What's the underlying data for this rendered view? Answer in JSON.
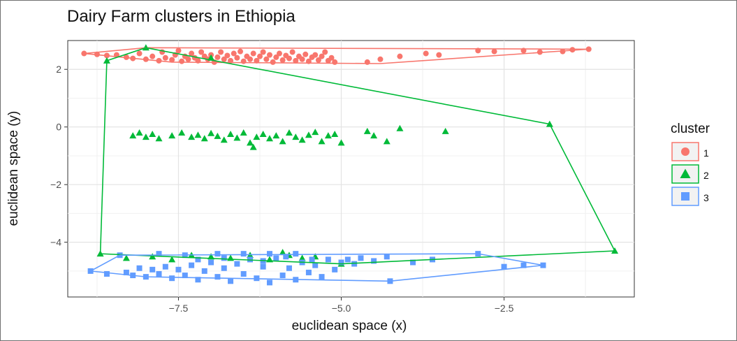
{
  "chart_data": {
    "type": "scatter",
    "title": "Dairy Farm clusters in Ethiopia",
    "xlabel": "euclidean space (x)",
    "ylabel": "euclidean space (y)",
    "xlim": [
      -9.2,
      -0.5
    ],
    "ylim": [
      -5.9,
      3.0
    ],
    "x_ticks": [
      -7.5,
      -5.0,
      -2.5
    ],
    "x_tick_labels": [
      "−7.5",
      "−5.0",
      "−2.5"
    ],
    "y_ticks": [
      -4,
      -2,
      0,
      2
    ],
    "y_tick_labels": [
      "−4",
      "−2",
      "0",
      "2"
    ],
    "grid": true,
    "legend": {
      "title": "cluster",
      "placement": "right"
    },
    "series": [
      {
        "name": "1",
        "marker": "circle",
        "color": "#F8766D",
        "points": [
          [
            -8.95,
            2.55
          ],
          [
            -8.75,
            2.52
          ],
          [
            -8.6,
            2.48
          ],
          [
            -8.45,
            2.5
          ],
          [
            -8.3,
            2.42
          ],
          [
            -8.2,
            2.38
          ],
          [
            -8.1,
            2.55
          ],
          [
            -8.0,
            2.35
          ],
          [
            -7.9,
            2.45
          ],
          [
            -7.8,
            2.3
          ],
          [
            -7.75,
            2.6
          ],
          [
            -7.7,
            2.4
          ],
          [
            -7.6,
            2.33
          ],
          [
            -7.55,
            2.5
          ],
          [
            -7.5,
            2.65
          ],
          [
            -7.45,
            2.28
          ],
          [
            -7.4,
            2.45
          ],
          [
            -7.35,
            2.35
          ],
          [
            -7.3,
            2.55
          ],
          [
            -7.25,
            2.4
          ],
          [
            -7.2,
            2.3
          ],
          [
            -7.15,
            2.6
          ],
          [
            -7.1,
            2.45
          ],
          [
            -7.05,
            2.35
          ],
          [
            -7.0,
            2.5
          ],
          [
            -6.95,
            2.25
          ],
          [
            -6.9,
            2.42
          ],
          [
            -6.85,
            2.6
          ],
          [
            -6.8,
            2.35
          ],
          [
            -6.75,
            2.48
          ],
          [
            -6.7,
            2.3
          ],
          [
            -6.65,
            2.55
          ],
          [
            -6.6,
            2.4
          ],
          [
            -6.55,
            2.62
          ],
          [
            -6.5,
            2.28
          ],
          [
            -6.45,
            2.45
          ],
          [
            -6.4,
            2.35
          ],
          [
            -6.35,
            2.55
          ],
          [
            -6.3,
            2.3
          ],
          [
            -6.25,
            2.45
          ],
          [
            -6.2,
            2.6
          ],
          [
            -6.15,
            2.35
          ],
          [
            -6.1,
            2.5
          ],
          [
            -6.05,
            2.25
          ],
          [
            -6.0,
            2.42
          ],
          [
            -5.95,
            2.55
          ],
          [
            -5.9,
            2.32
          ],
          [
            -5.85,
            2.48
          ],
          [
            -5.8,
            2.38
          ],
          [
            -5.75,
            2.6
          ],
          [
            -5.7,
            2.3
          ],
          [
            -5.65,
            2.45
          ],
          [
            -5.6,
            2.35
          ],
          [
            -5.55,
            2.52
          ],
          [
            -5.5,
            2.28
          ],
          [
            -5.45,
            2.42
          ],
          [
            -5.4,
            2.5
          ],
          [
            -5.35,
            2.32
          ],
          [
            -5.3,
            2.45
          ],
          [
            -5.25,
            2.6
          ],
          [
            -5.2,
            2.3
          ],
          [
            -5.15,
            2.4
          ],
          [
            -5.1,
            2.25
          ],
          [
            -4.6,
            2.25
          ],
          [
            -4.4,
            2.35
          ],
          [
            -4.1,
            2.45
          ],
          [
            -3.7,
            2.55
          ],
          [
            -3.5,
            2.5
          ],
          [
            -2.9,
            2.65
          ],
          [
            -2.65,
            2.62
          ],
          [
            -2.2,
            2.65
          ],
          [
            -1.95,
            2.6
          ],
          [
            -1.6,
            2.62
          ],
          [
            -1.45,
            2.68
          ],
          [
            -1.2,
            2.7
          ]
        ]
      },
      {
        "name": "2",
        "marker": "triangle",
        "color": "#00BA38",
        "points": [
          [
            -8.2,
            -0.3
          ],
          [
            -8.1,
            -0.2
          ],
          [
            -8.0,
            -0.35
          ],
          [
            -7.9,
            -0.25
          ],
          [
            -7.8,
            -0.4
          ],
          [
            -7.6,
            -0.3
          ],
          [
            -7.45,
            -0.2
          ],
          [
            -7.3,
            -0.35
          ],
          [
            -7.2,
            -0.28
          ],
          [
            -7.1,
            -0.4
          ],
          [
            -7.0,
            -0.22
          ],
          [
            -6.9,
            -0.32
          ],
          [
            -6.8,
            -0.45
          ],
          [
            -6.7,
            -0.25
          ],
          [
            -6.6,
            -0.38
          ],
          [
            -6.5,
            -0.2
          ],
          [
            -6.4,
            -0.55
          ],
          [
            -6.35,
            -0.7
          ],
          [
            -6.3,
            -0.35
          ],
          [
            -6.2,
            -0.25
          ],
          [
            -6.1,
            -0.4
          ],
          [
            -6.0,
            -0.3
          ],
          [
            -5.9,
            -0.5
          ],
          [
            -5.8,
            -0.2
          ],
          [
            -5.7,
            -0.35
          ],
          [
            -5.6,
            -0.45
          ],
          [
            -5.5,
            -0.28
          ],
          [
            -5.4,
            -0.18
          ],
          [
            -5.3,
            -0.5
          ],
          [
            -5.2,
            -0.3
          ],
          [
            -5.1,
            -0.25
          ],
          [
            -5.0,
            -0.55
          ],
          [
            -4.6,
            -0.15
          ],
          [
            -4.5,
            -0.3
          ],
          [
            -4.3,
            -0.5
          ],
          [
            -4.1,
            -0.05
          ],
          [
            -3.4,
            -0.15
          ],
          [
            -8.0,
            2.75
          ],
          [
            -8.6,
            2.3
          ],
          [
            -7.0,
            2.4
          ],
          [
            -1.8,
            0.1
          ],
          [
            -0.8,
            -4.3
          ],
          [
            -8.7,
            -4.4
          ],
          [
            -5.0,
            -4.75
          ],
          [
            -8.3,
            -4.55
          ],
          [
            -7.9,
            -4.5
          ],
          [
            -7.6,
            -4.6
          ],
          [
            -7.3,
            -4.45
          ],
          [
            -7.0,
            -4.5
          ],
          [
            -6.7,
            -4.55
          ],
          [
            -6.4,
            -4.45
          ],
          [
            -6.1,
            -4.6
          ],
          [
            -5.9,
            -4.35
          ],
          [
            -5.8,
            -4.45
          ],
          [
            -5.6,
            -4.55
          ],
          [
            -5.4,
            -4.5
          ]
        ]
      },
      {
        "name": "3",
        "marker": "square",
        "color": "#619CFF",
        "points": [
          [
            -8.85,
            -5.0
          ],
          [
            -8.6,
            -5.1
          ],
          [
            -8.4,
            -4.45
          ],
          [
            -8.3,
            -5.05
          ],
          [
            -8.2,
            -5.15
          ],
          [
            -8.1,
            -4.9
          ],
          [
            -8.0,
            -5.2
          ],
          [
            -7.9,
            -4.95
          ],
          [
            -7.8,
            -5.1
          ],
          [
            -7.7,
            -4.85
          ],
          [
            -7.6,
            -5.25
          ],
          [
            -7.5,
            -4.95
          ],
          [
            -7.4,
            -5.15
          ],
          [
            -7.3,
            -4.8
          ],
          [
            -7.2,
            -5.3
          ],
          [
            -7.1,
            -5.0
          ],
          [
            -7.0,
            -4.7
          ],
          [
            -6.9,
            -5.2
          ],
          [
            -6.8,
            -4.9
          ],
          [
            -6.7,
            -5.35
          ],
          [
            -6.6,
            -4.75
          ],
          [
            -6.5,
            -5.1
          ],
          [
            -6.4,
            -4.6
          ],
          [
            -6.3,
            -5.25
          ],
          [
            -6.2,
            -4.85
          ],
          [
            -6.1,
            -5.4
          ],
          [
            -6.0,
            -4.55
          ],
          [
            -5.9,
            -5.15
          ],
          [
            -5.8,
            -4.9
          ],
          [
            -5.7,
            -5.3
          ],
          [
            -5.6,
            -4.7
          ],
          [
            -5.5,
            -5.05
          ],
          [
            -5.4,
            -4.8
          ],
          [
            -5.3,
            -5.2
          ],
          [
            -5.2,
            -4.6
          ],
          [
            -5.1,
            -4.95
          ],
          [
            -5.0,
            -4.7
          ],
          [
            -4.9,
            -4.6
          ],
          [
            -4.8,
            -4.75
          ],
          [
            -4.7,
            -4.55
          ],
          [
            -4.5,
            -4.65
          ],
          [
            -4.3,
            -4.5
          ],
          [
            -4.25,
            -5.35
          ],
          [
            -3.9,
            -4.7
          ],
          [
            -3.6,
            -4.6
          ],
          [
            -2.9,
            -4.4
          ],
          [
            -2.5,
            -4.85
          ],
          [
            -2.2,
            -4.8
          ],
          [
            -1.9,
            -4.8
          ],
          [
            -7.8,
            -4.4
          ],
          [
            -7.4,
            -4.45
          ],
          [
            -6.9,
            -4.4
          ],
          [
            -6.5,
            -4.4
          ],
          [
            -6.1,
            -4.4
          ],
          [
            -5.7,
            -4.4
          ],
          [
            -7.2,
            -4.6
          ],
          [
            -6.8,
            -4.55
          ],
          [
            -6.2,
            -4.65
          ],
          [
            -5.85,
            -4.5
          ],
          [
            -5.45,
            -4.6
          ]
        ]
      }
    ],
    "hull_lines": {
      "1": [
        [
          -8.95,
          2.55
        ],
        [
          -8.0,
          2.75
        ],
        [
          -1.2,
          2.7
        ],
        [
          -4.4,
          2.2
        ],
        [
          -7.6,
          2.25
        ],
        [
          -8.95,
          2.55
        ]
      ],
      "2": [
        [
          -8.0,
          2.75
        ],
        [
          -1.8,
          0.1
        ],
        [
          -0.8,
          -4.3
        ],
        [
          -5.0,
          -4.75
        ],
        [
          -8.7,
          -4.4
        ],
        [
          -8.6,
          2.3
        ],
        [
          -8.0,
          2.75
        ]
      ],
      "3": [
        [
          -8.4,
          -4.45
        ],
        [
          -2.9,
          -4.4
        ],
        [
          -1.9,
          -4.8
        ],
        [
          -4.25,
          -5.35
        ],
        [
          -8.0,
          -5.2
        ],
        [
          -8.85,
          -5.0
        ],
        [
          -8.4,
          -4.45
        ]
      ]
    }
  }
}
